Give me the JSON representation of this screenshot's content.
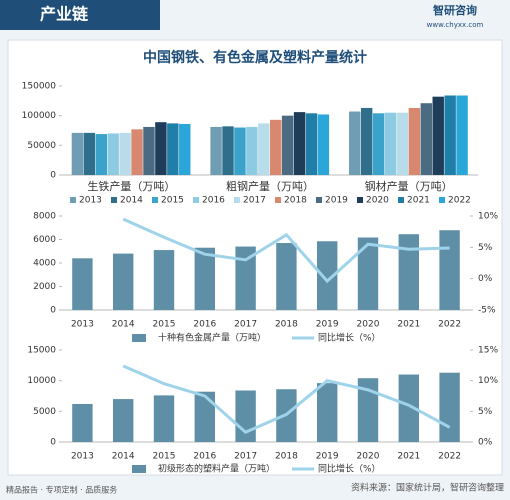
{
  "header": {
    "section": "产业链",
    "brand": "智研咨询",
    "site": "www.chyxx.com"
  },
  "title": "中国钢铁、有色金属及塑料产量统计",
  "footer": {
    "left": "精品报告 · 专项定制 · 品质服务",
    "source": "资料来源：国家统计局，智研咨询整理"
  },
  "chart_data": [
    {
      "type": "grouped-bar",
      "categories": [
        "生铁产量（万吨）",
        "粗钢产量（万吨）",
        "钢材产量（万吨）"
      ],
      "series": [
        {
          "name": "2013",
          "color": "#6f9db3",
          "values": [
            71000,
            81000,
            107000
          ]
        },
        {
          "name": "2014",
          "color": "#2f6f8c",
          "values": [
            71000,
            82000,
            113000
          ]
        },
        {
          "name": "2015",
          "color": "#3ba2cc",
          "values": [
            69000,
            80000,
            104000
          ]
        },
        {
          "name": "2016",
          "color": "#8dcbe2",
          "values": [
            70000,
            81000,
            105000
          ]
        },
        {
          "name": "2017",
          "color": "#b9dcea",
          "values": [
            71000,
            87000,
            105000
          ]
        },
        {
          "name": "2018",
          "color": "#d98870",
          "values": [
            77000,
            93000,
            113000
          ]
        },
        {
          "name": "2019",
          "color": "#4b6b82",
          "values": [
            81000,
            100000,
            121000
          ]
        },
        {
          "name": "2020",
          "color": "#1f3d58",
          "values": [
            89000,
            106000,
            132000
          ]
        },
        {
          "name": "2021",
          "color": "#1f7fa9",
          "values": [
            87000,
            104000,
            134000
          ]
        },
        {
          "name": "2022",
          "color": "#2ba6d8",
          "values": [
            86000,
            102000,
            134000
          ]
        }
      ],
      "ylim": [
        0,
        150000
      ],
      "yticks": [
        0,
        50000,
        100000,
        150000
      ]
    },
    {
      "type": "combo",
      "categories": [
        "2013",
        "2014",
        "2015",
        "2016",
        "2017",
        "2018",
        "2019",
        "2020",
        "2021",
        "2022"
      ],
      "series": [
        {
          "name": "十种有色金属产量（万吨）",
          "type": "bar",
          "color": "#5f8fa6",
          "values": [
            4400,
            4800,
            5100,
            5300,
            5400,
            5700,
            5850,
            6170,
            6450,
            6790
          ]
        },
        {
          "name": "同比增长（%）",
          "type": "line",
          "axis": "y2",
          "color": "#9fd3ea",
          "values": [
            null,
            9.5,
            6.6,
            3.9,
            3.0,
            7.0,
            -0.4,
            5.5,
            4.7,
            4.9
          ]
        }
      ],
      "ylim": [
        0,
        8000
      ],
      "yticks": [
        0,
        2000,
        4000,
        6000,
        8000
      ],
      "y2lim": [
        -5,
        10
      ],
      "y2ticks": [
        {
          "value": -5,
          "label": "-5%"
        },
        {
          "value": 0,
          "label": "0%"
        },
        {
          "value": 5,
          "label": "5%"
        },
        {
          "value": 10,
          "label": "10%"
        }
      ]
    },
    {
      "type": "combo",
      "categories": [
        "2013",
        "2014",
        "2015",
        "2016",
        "2017",
        "2018",
        "2019",
        "2020",
        "2021",
        "2022"
      ],
      "series": [
        {
          "name": "初级形态的塑料产量（万吨）",
          "type": "bar",
          "color": "#5f8fa6",
          "values": [
            6200,
            7000,
            7600,
            8200,
            8400,
            8600,
            9600,
            10400,
            11000,
            11300
          ]
        },
        {
          "name": "同比增长（%）",
          "type": "line",
          "axis": "y2",
          "color": "#9fd3ea",
          "values": [
            null,
            12.4,
            9.5,
            7.5,
            1.6,
            4.5,
            10.0,
            8.5,
            6.0,
            2.4
          ]
        }
      ],
      "ylim": [
        0,
        15000
      ],
      "yticks": [
        0,
        5000,
        10000,
        15000
      ],
      "y2lim": [
        0,
        15
      ],
      "y2ticks": [
        {
          "value": 0,
          "label": "0%"
        },
        {
          "value": 5,
          "label": "5%"
        },
        {
          "value": 10,
          "label": "10%"
        },
        {
          "value": 15,
          "label": "15%"
        }
      ]
    }
  ]
}
